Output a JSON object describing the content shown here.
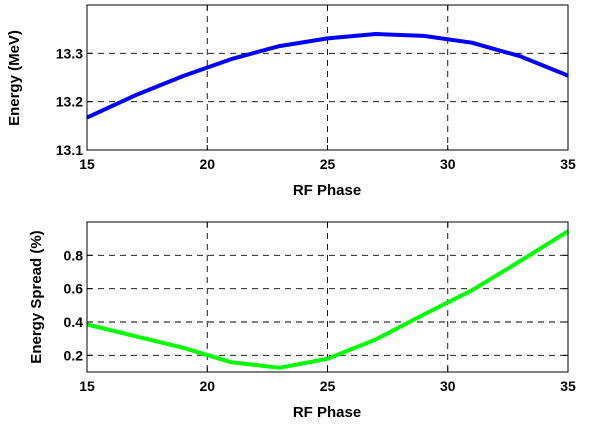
{
  "chart_data": [
    {
      "type": "line",
      "xlabel": "RF Phase",
      "ylabel": "Energy (MeV)",
      "xlim": [
        15,
        35
      ],
      "ylim": [
        13.1,
        13.4
      ],
      "xticks": [
        "15",
        "20",
        "25",
        "30",
        "35"
      ],
      "yticks": [
        "13.1",
        "13.2",
        "13.3"
      ],
      "grid": true,
      "series": [
        {
          "color": "#0000ff",
          "x": [
            15,
            17,
            19,
            21,
            23,
            25,
            27,
            29,
            31,
            33,
            35
          ],
          "y": [
            13.167,
            13.213,
            13.253,
            13.288,
            13.315,
            13.331,
            13.34,
            13.336,
            13.322,
            13.294,
            13.254
          ]
        }
      ]
    },
    {
      "type": "line",
      "xlabel": "RF Phase",
      "ylabel": "Energy Spread (%)",
      "xlim": [
        15,
        35
      ],
      "ylim": [
        0.1,
        1.0
      ],
      "xticks": [
        "15",
        "20",
        "25",
        "30",
        "35"
      ],
      "yticks": [
        "0.2",
        "0.4",
        "0.6",
        "0.8"
      ],
      "grid": true,
      "series": [
        {
          "color": "#00ff00",
          "x": [
            15,
            17,
            19,
            21,
            23,
            25,
            27,
            29,
            31,
            33,
            35
          ],
          "y": [
            0.385,
            0.315,
            0.245,
            0.158,
            0.125,
            0.18,
            0.295,
            0.445,
            0.59,
            0.765,
            0.945
          ]
        }
      ]
    }
  ]
}
